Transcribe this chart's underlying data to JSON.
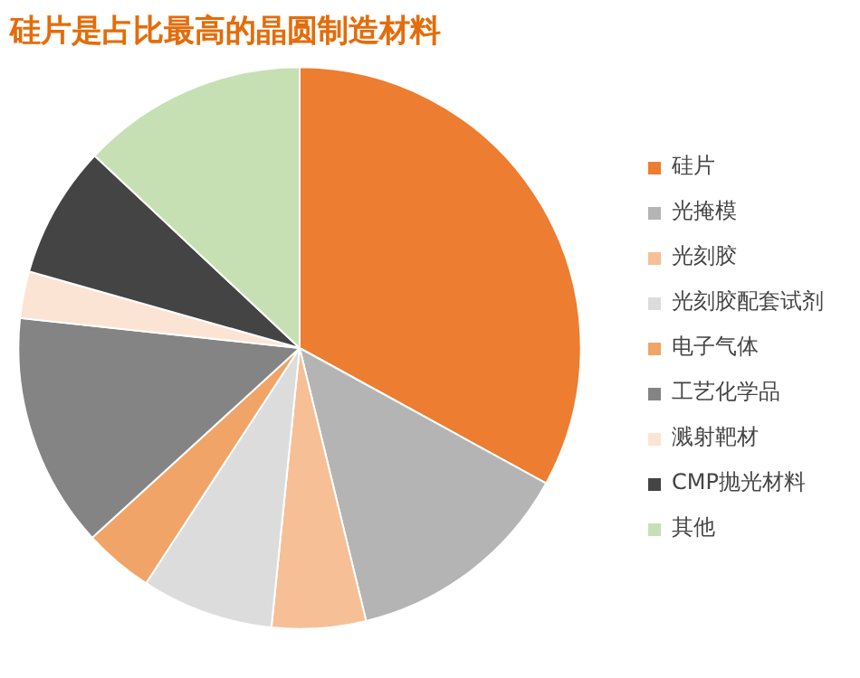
{
  "chart_data": {
    "type": "pie",
    "title": "硅片是占比最高的晶圆制造材料",
    "categories": [
      "硅片",
      "光掩模",
      "光刻胶",
      "光刻胶配套试剂",
      "电子气体",
      "工艺化学品",
      "溅射靶材",
      "CMP抛光材料",
      "其他"
    ],
    "values": [
      33.0,
      13.2,
      5.4,
      7.6,
      4.0,
      13.5,
      2.7,
      7.6,
      13.0
    ],
    "colors": [
      "#ed7d31",
      "#b4b4b4",
      "#f6bf96",
      "#dcdcdc",
      "#f0a468",
      "#848484",
      "#fce4d4",
      "#444444",
      "#c6e0b4"
    ],
    "legend": "right"
  }
}
